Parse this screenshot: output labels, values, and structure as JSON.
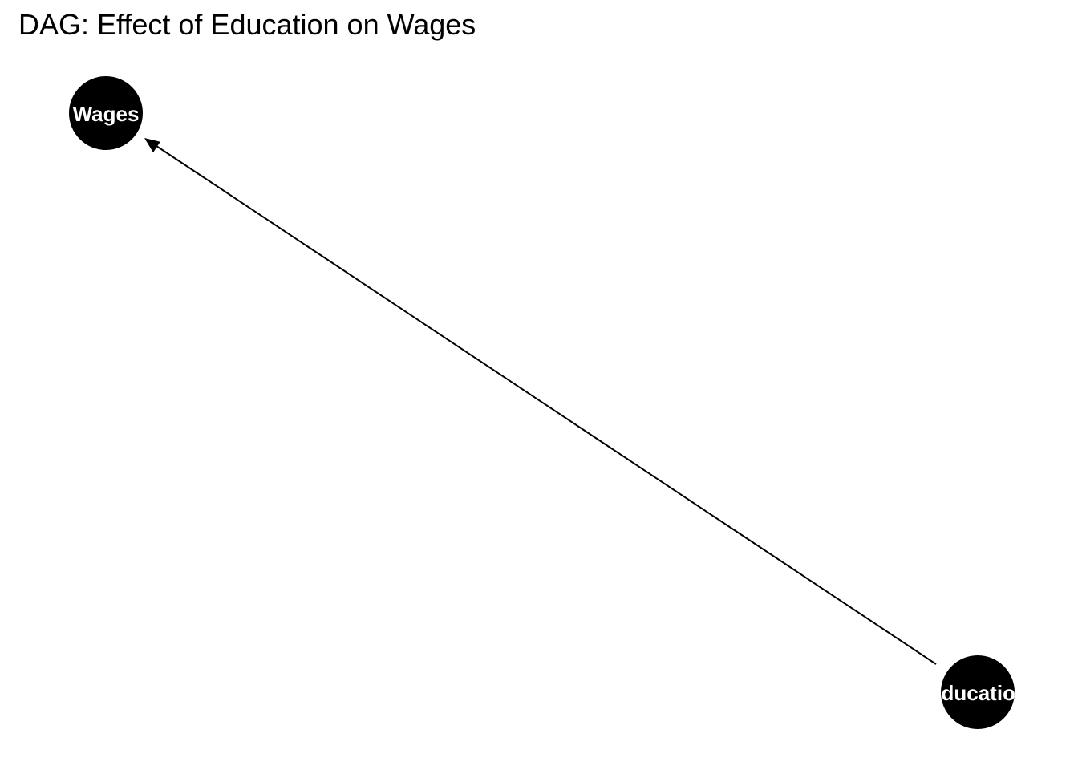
{
  "title": "DAG: Effect of Education on Wages",
  "nodes": [
    {
      "id": "wages",
      "label": "Wages"
    },
    {
      "id": "education",
      "label": "Education"
    }
  ],
  "edges": [
    {
      "from": "education",
      "to": "wages"
    }
  ],
  "colors": {
    "background": "#ffffff",
    "node_fill": "#000000",
    "node_text": "#ffffff",
    "edge": "#000000"
  }
}
